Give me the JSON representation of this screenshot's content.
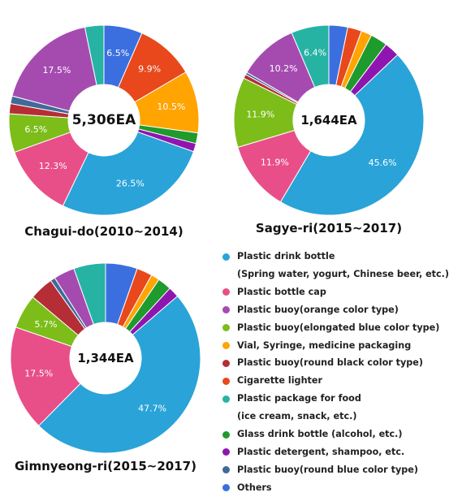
{
  "categories": [
    {
      "name": "Plastic drink bottle",
      "note": "(Spring water, yogurt, Chinese beer, etc.)",
      "color": "#2aa3d8"
    },
    {
      "name": "Plastic bottle cap",
      "note": "",
      "color": "#e84f88"
    },
    {
      "name": "Plastic buoy(orange color type)",
      "note": "",
      "color": "#a54bb0"
    },
    {
      "name": "Plastic buoy(elongated blue color type)",
      "note": "",
      "color": "#7cbd1a"
    },
    {
      "name": "Vial, Syringe, medicine packaging",
      "note": "",
      "color": "#ffa400"
    },
    {
      "name": "Plastic buoy(round black color type)",
      "note": "",
      "color": "#b52e36"
    },
    {
      "name": "Cigarette lighter",
      "note": "",
      "color": "#e8481c"
    },
    {
      "name": "Plastic package for food",
      "note": "(ice cream, snack, etc.)",
      "color": "#26b3a4"
    },
    {
      "name": "Glass drink bottle (alcohol, etc.)",
      "note": "",
      "color": "#1f9a2c"
    },
    {
      "name": "Plastic detergent, shampoo, etc.",
      "note": "",
      "color": "#8f15b0"
    },
    {
      "name": "Plastic buoy(round blue color type)",
      "note": "",
      "color": "#3f6a9a"
    },
    {
      "name": "Others",
      "note": "",
      "color": "#3b6fe0"
    }
  ],
  "chart_data": [
    {
      "type": "pie",
      "title": "Chagui-do(2010~2014)",
      "center_label": "5,306EA",
      "slices": [
        {
          "category": "Others",
          "value": 6.5,
          "label": "6.5%"
        },
        {
          "category": "Cigarette lighter",
          "value": 9.9,
          "label": "9.9%"
        },
        {
          "category": "Vial, Syringe, medicine packaging",
          "value": 10.5,
          "label": "10.5%"
        },
        {
          "category": "Glass drink bottle (alcohol, etc.)",
          "value": 1.8,
          "label": ""
        },
        {
          "category": "Plastic detergent, shampoo, etc.",
          "value": 1.4,
          "label": ""
        },
        {
          "category": "Plastic drink bottle",
          "value": 26.5,
          "label": "26.5%"
        },
        {
          "category": "Plastic bottle cap",
          "value": 12.3,
          "label": "12.3%"
        },
        {
          "category": "Plastic buoy(elongated blue color type)",
          "value": 6.5,
          "label": "6.5%"
        },
        {
          "category": "Plastic buoy(round black color type)",
          "value": 1.7,
          "label": ""
        },
        {
          "category": "Plastic buoy(round blue color type)",
          "value": 1.3,
          "label": ""
        },
        {
          "category": "Plastic buoy(orange color type)",
          "value": 17.5,
          "label": "17.5%"
        },
        {
          "category": "Plastic package for food",
          "value": 3.2,
          "label": ""
        }
      ]
    },
    {
      "type": "pie",
      "title": "Sagye-ri(2015~2017)",
      "center_label": "1,644EA",
      "slices": [
        {
          "category": "Others",
          "value": 3.2,
          "label": ""
        },
        {
          "category": "Cigarette lighter",
          "value": 2.4,
          "label": ""
        },
        {
          "category": "Vial, Syringe, medicine packaging",
          "value": 1.8,
          "label": ""
        },
        {
          "category": "Glass drink bottle (alcohol, etc.)",
          "value": 2.9,
          "label": ""
        },
        {
          "category": "Plastic detergent, shampoo, etc.",
          "value": 2.6,
          "label": ""
        },
        {
          "category": "Plastic drink bottle",
          "value": 45.6,
          "label": "45.6%"
        },
        {
          "category": "Plastic bottle cap",
          "value": 11.9,
          "label": "11.9%"
        },
        {
          "category": "Plastic buoy(elongated blue color type)",
          "value": 11.9,
          "label": "11.9%"
        },
        {
          "category": "Plastic buoy(round black color type)",
          "value": 0.7,
          "label": ""
        },
        {
          "category": "Plastic buoy(round blue color type)",
          "value": 0.4,
          "label": ""
        },
        {
          "category": "Plastic buoy(orange color type)",
          "value": 10.2,
          "label": "10.2%"
        },
        {
          "category": "Plastic package for food",
          "value": 6.4,
          "label": "6.4%"
        }
      ]
    },
    {
      "type": "pie",
      "title": "Gimnyeong-ri(2015~2017)",
      "center_label": "1,344EA",
      "slices": [
        {
          "category": "Others",
          "value": 5.3,
          "label": ""
        },
        {
          "category": "Cigarette lighter",
          "value": 2.6,
          "label": ""
        },
        {
          "category": "Vial, Syringe, medicine packaging",
          "value": 1.4,
          "label": ""
        },
        {
          "category": "Glass drink bottle (alcohol, etc.)",
          "value": 2.3,
          "label": ""
        },
        {
          "category": "Plastic detergent, shampoo, etc.",
          "value": 1.8,
          "label": ""
        },
        {
          "category": "Plastic drink bottle",
          "value": 47.7,
          "label": "47.7%"
        },
        {
          "category": "Plastic bottle cap",
          "value": 17.5,
          "label": "17.5%"
        },
        {
          "category": "Plastic buoy(elongated blue color type)",
          "value": 5.7,
          "label": "5.7%"
        },
        {
          "category": "Plastic buoy(round black color type)",
          "value": 4.0,
          "label": ""
        },
        {
          "category": "Plastic buoy(round blue color type)",
          "value": 0.8,
          "label": ""
        },
        {
          "category": "Plastic buoy(orange color type)",
          "value": 3.5,
          "label": ""
        },
        {
          "category": "Plastic package for food",
          "value": 5.3,
          "label": ""
        }
      ]
    }
  ]
}
